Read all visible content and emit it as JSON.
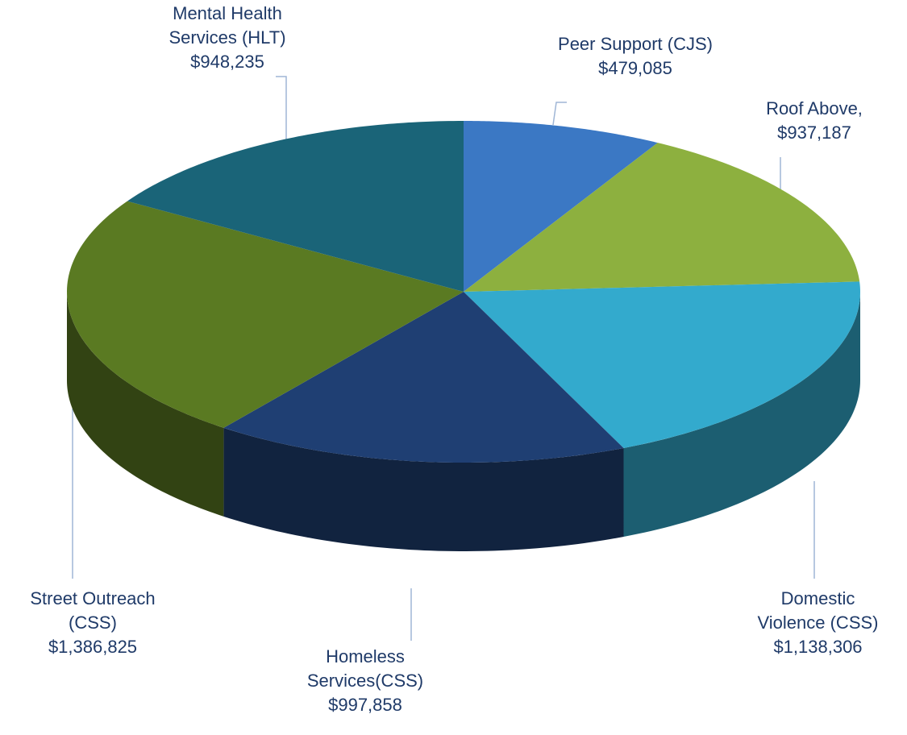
{
  "chart_data": {
    "type": "pie",
    "categories": [
      "Peer Support (CJS)",
      "Roof Above,",
      "Domestic Violence (CSS)",
      "Homeless Services(CSS)",
      "Street Outreach (CSS)",
      "Mental Health Services (HLT)"
    ],
    "values": [
      479085,
      937187,
      1138306,
      997858,
      1386825,
      948235
    ],
    "value_labels": [
      "$479,085",
      "$937,187",
      "$1,138,306",
      "$997,858",
      "$1,386,825",
      "$948,235"
    ],
    "colors": [
      "#3b78c4",
      "#8db03f",
      "#33aacd",
      "#1f3f73",
      "#5a7a22",
      "#1a6478"
    ]
  }
}
